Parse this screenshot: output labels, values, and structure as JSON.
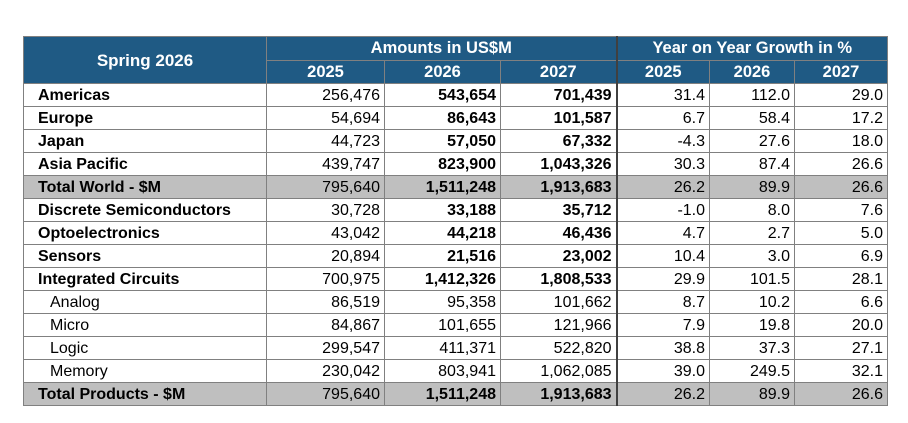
{
  "header": {
    "corner_label": "Spring 2026",
    "group_amounts": "Amounts in US$M",
    "group_growth": "Year on Year Growth in %",
    "years_amounts": [
      "2025",
      "2026",
      "2027"
    ],
    "years_growth": [
      "2025",
      "2026",
      "2027"
    ]
  },
  "rows": [
    {
      "label": "Americas",
      "amounts": [
        "256,476",
        "543,654",
        "701,439"
      ],
      "growth": [
        "31.4",
        "112.0",
        "29.0"
      ],
      "style": "bold"
    },
    {
      "label": "Europe",
      "amounts": [
        "54,694",
        "86,643",
        "101,587"
      ],
      "growth": [
        "6.7",
        "58.4",
        "17.2"
      ],
      "style": "bold"
    },
    {
      "label": "Japan",
      "amounts": [
        "44,723",
        "57,050",
        "67,332"
      ],
      "growth": [
        "-4.3",
        "27.6",
        "18.0"
      ],
      "style": "bold"
    },
    {
      "label": "Asia Pacific",
      "amounts": [
        "439,747",
        "823,900",
        "1,043,326"
      ],
      "growth": [
        "30.3",
        "87.4",
        "26.6"
      ],
      "style": "bold"
    },
    {
      "label": "Total World - $M",
      "amounts": [
        "795,640",
        "1,511,248",
        "1,913,683"
      ],
      "growth": [
        "26.2",
        "89.9",
        "26.6"
      ],
      "style": "total"
    },
    {
      "label": "Discrete Semiconductors",
      "amounts": [
        "30,728",
        "33,188",
        "35,712"
      ],
      "growth": [
        "-1.0",
        "8.0",
        "7.6"
      ],
      "style": "bold"
    },
    {
      "label": "Optoelectronics",
      "amounts": [
        "43,042",
        "44,218",
        "46,436"
      ],
      "growth": [
        "4.7",
        "2.7",
        "5.0"
      ],
      "style": "bold"
    },
    {
      "label": "Sensors",
      "amounts": [
        "20,894",
        "21,516",
        "23,002"
      ],
      "growth": [
        "10.4",
        "3.0",
        "6.9"
      ],
      "style": "bold"
    },
    {
      "label": "Integrated Circuits",
      "amounts": [
        "700,975",
        "1,412,326",
        "1,808,533"
      ],
      "growth": [
        "29.9",
        "101.5",
        "28.1"
      ],
      "style": "bold"
    },
    {
      "label": "Analog",
      "amounts": [
        "86,519",
        "95,358",
        "101,662"
      ],
      "growth": [
        "8.7",
        "10.2",
        "6.6"
      ],
      "style": "sub"
    },
    {
      "label": "Micro",
      "amounts": [
        "84,867",
        "101,655",
        "121,966"
      ],
      "growth": [
        "7.9",
        "19.8",
        "20.0"
      ],
      "style": "sub"
    },
    {
      "label": "Logic",
      "amounts": [
        "299,547",
        "411,371",
        "522,820"
      ],
      "growth": [
        "38.8",
        "37.3",
        "27.1"
      ],
      "style": "sub"
    },
    {
      "label": "Memory",
      "amounts": [
        "230,042",
        "803,941",
        "1,062,085"
      ],
      "growth": [
        "39.0",
        "249.5",
        "32.1"
      ],
      "style": "sub"
    },
    {
      "label": "Total Products - $M",
      "amounts": [
        "795,640",
        "1,511,248",
        "1,913,683"
      ],
      "growth": [
        "26.2",
        "89.9",
        "26.6"
      ],
      "style": "total"
    }
  ]
}
